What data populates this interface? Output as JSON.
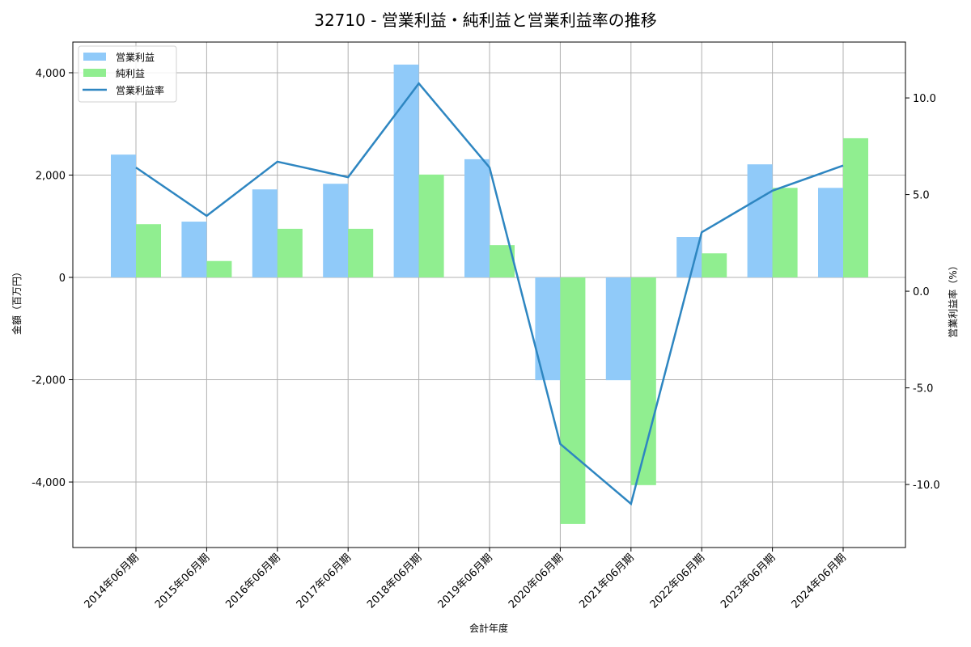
{
  "chart_data": {
    "type": "bar",
    "title": "32710 - 営業利益・純利益と営業利益率の推移",
    "xlabel": "会計年度",
    "ylabel": "金額（百万円）",
    "y2label": "営業利益率（%）",
    "categories": [
      "2014年06月期",
      "2015年06月期",
      "2016年06月期",
      "2017年06月期",
      "2018年06月期",
      "2019年06月期",
      "2020年06月期",
      "2021年06月期",
      "2022年06月期",
      "2023年06月期",
      "2024年06月期"
    ],
    "series": [
      {
        "name": "営業利益",
        "type": "bar",
        "axis": "left",
        "color": "#90CAF9",
        "values": [
          2400,
          1090,
          1720,
          1830,
          4160,
          2310,
          -2010,
          -2010,
          790,
          2210,
          1750
        ]
      },
      {
        "name": "純利益",
        "type": "bar",
        "axis": "left",
        "color": "#90EE90",
        "values": [
          1040,
          320,
          950,
          950,
          2010,
          630,
          -4820,
          -4060,
          470,
          1750,
          2720
        ]
      },
      {
        "name": "営業利益率",
        "type": "line",
        "axis": "right",
        "color": "#2E86C1",
        "values": [
          6.4,
          3.9,
          6.7,
          5.9,
          10.75,
          6.4,
          -7.9,
          -11.0,
          3.05,
          5.2,
          6.5
        ]
      }
    ],
    "ylim": [
      -5280,
      4600
    ],
    "y2lim": [
      -13.26,
      12.89
    ],
    "yticks": [
      -4000,
      -2000,
      0,
      2000,
      4000
    ],
    "ytick_labels": [
      "-4,000",
      "-2,000",
      "0",
      "2,000",
      "4,000"
    ],
    "y2ticks": [
      -10,
      -5,
      0,
      5,
      10
    ],
    "y2tick_labels": [
      "-10.0",
      "-5.0",
      "0.0",
      "5.0",
      "10.0"
    ],
    "grid": true,
    "legend_position": "upper left"
  }
}
